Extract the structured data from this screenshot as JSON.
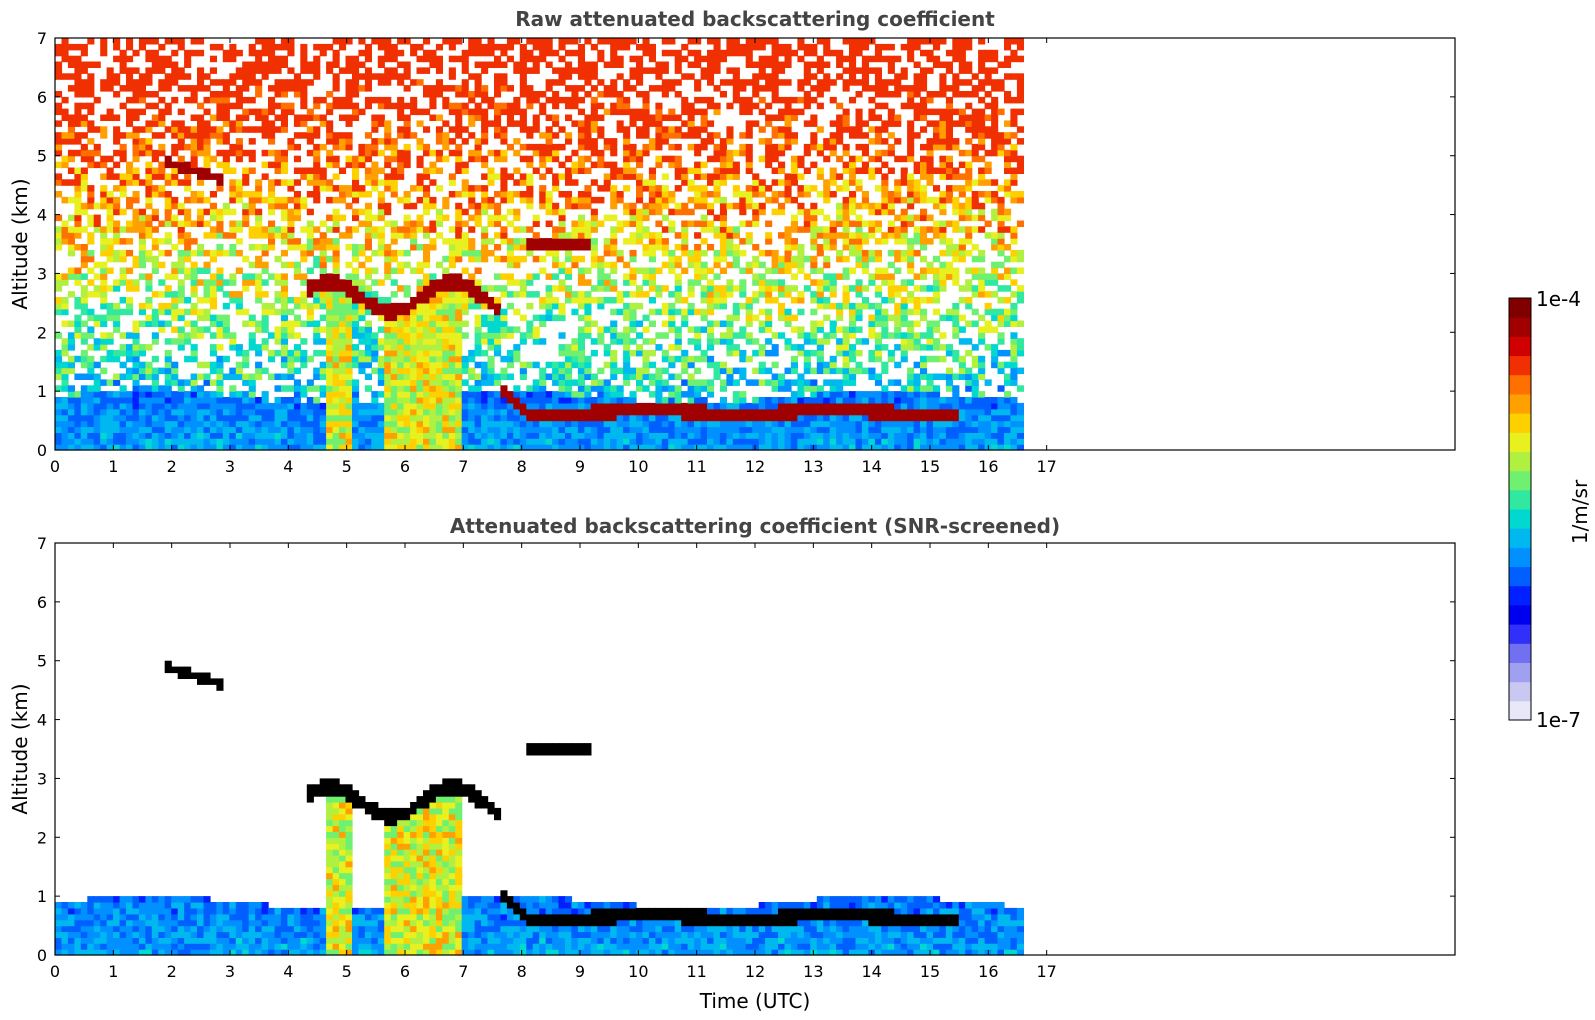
{
  "chart_data": [
    {
      "type": "heatmap",
      "title": "Raw attenuated backscattering coefficient",
      "xlabel": "",
      "ylabel": "Altitude (km)",
      "xlim": [
        0,
        24
      ],
      "ylim": [
        0,
        7
      ],
      "xticks": [
        "0",
        "1",
        "2",
        "3",
        "4",
        "5",
        "6",
        "7",
        "8",
        "9",
        "10",
        "11",
        "12",
        "13",
        "14",
        "15",
        "16",
        "17"
      ],
      "yticks": [
        "0",
        "1",
        "2",
        "3",
        "4",
        "5",
        "6",
        "7"
      ],
      "data_extent_hours": 16.6,
      "screened": false,
      "features": [
        {
          "name": "boundary layer aerosol",
          "x": [
            0,
            16.6
          ],
          "top_km": 0.9
        },
        {
          "name": "elevated cloud layer",
          "x": [
            4.3,
            7.6
          ],
          "y_km": 2.6
        },
        {
          "name": "precipitation shafts",
          "x": [
            4.5,
            7.2
          ],
          "top_km": 2.6
        },
        {
          "name": "low cloud deck",
          "x": [
            7.6,
            15.5
          ],
          "y_km": 0.65
        },
        {
          "name": "mid cloud",
          "x": [
            8.1,
            9.2
          ],
          "y_km": 3.5
        },
        {
          "name": "high cloud",
          "x": [
            1.9,
            2.9
          ],
          "y_km": 4.8
        }
      ]
    },
    {
      "type": "heatmap",
      "title": "Attenuated backscattering coefficient (SNR-screened)",
      "xlabel": "Time (UTC)",
      "ylabel": "Altitude (km)",
      "xlim": [
        0,
        24
      ],
      "ylim": [
        0,
        7
      ],
      "xticks": [
        "0",
        "1",
        "2",
        "3",
        "4",
        "5",
        "6",
        "7",
        "8",
        "9",
        "10",
        "11",
        "12",
        "13",
        "14",
        "15",
        "16",
        "17"
      ],
      "yticks": [
        "0",
        "1",
        "2",
        "3",
        "4",
        "5",
        "6",
        "7"
      ],
      "data_extent_hours": 16.6,
      "screened": true
    }
  ],
  "colorbar": {
    "min_label": "1e-7",
    "max_label": "1e-4",
    "unit_label": "1/m/sr",
    "colors": [
      "#e8e8f8",
      "#c8c8f0",
      "#a0a0f0",
      "#7070f0",
      "#3030f8",
      "#0000f0",
      "#0020ff",
      "#0060ff",
      "#0090ff",
      "#00b8f0",
      "#00d8d0",
      "#30e8a0",
      "#70f070",
      "#b0f040",
      "#e8f020",
      "#ffd000",
      "#ffa000",
      "#ff7000",
      "#f03000",
      "#d00000",
      "#a00000",
      "#800000"
    ]
  }
}
